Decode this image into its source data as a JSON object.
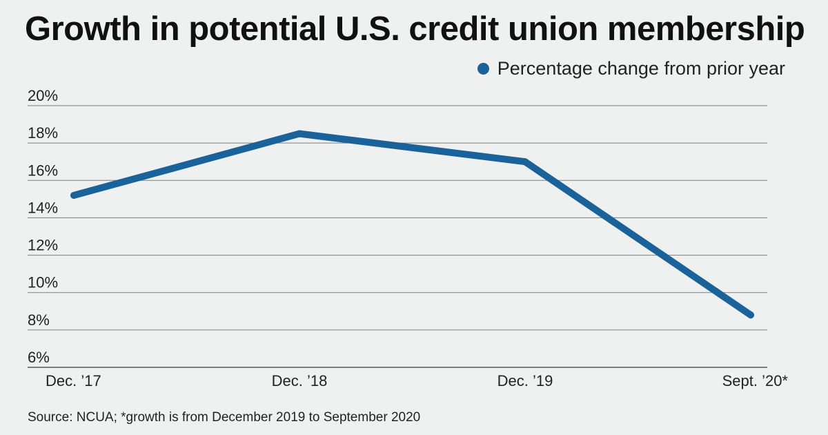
{
  "title": "Growth in potential U.S. credit union membership",
  "source": "Source: NCUA; *growth is from December 2019 to September 2020",
  "colors": {
    "background": "#eff1f1",
    "series": "#1a639a",
    "gridline": "#7d7d7d",
    "text": "#222222"
  },
  "chart_data": {
    "type": "line",
    "categories": [
      "Dec. ’17",
      "Dec. ’18",
      "Dec. ’19",
      "Sept. ’20*"
    ],
    "series": [
      {
        "name": "Percentage change from prior year",
        "values": [
          15.2,
          18.5,
          17.0,
          8.8
        ]
      }
    ],
    "title": "Growth in potential U.S. credit union membership",
    "xlabel": "",
    "ylabel": "",
    "ylim": [
      6,
      20
    ],
    "yticks": [
      6,
      8,
      10,
      12,
      14,
      16,
      18,
      20
    ],
    "ytick_labels": [
      "6%",
      "8%",
      "10%",
      "12%",
      "14%",
      "16%",
      "18%",
      "20%"
    ],
    "grid": "horizontal",
    "legend_position": "top-right"
  }
}
